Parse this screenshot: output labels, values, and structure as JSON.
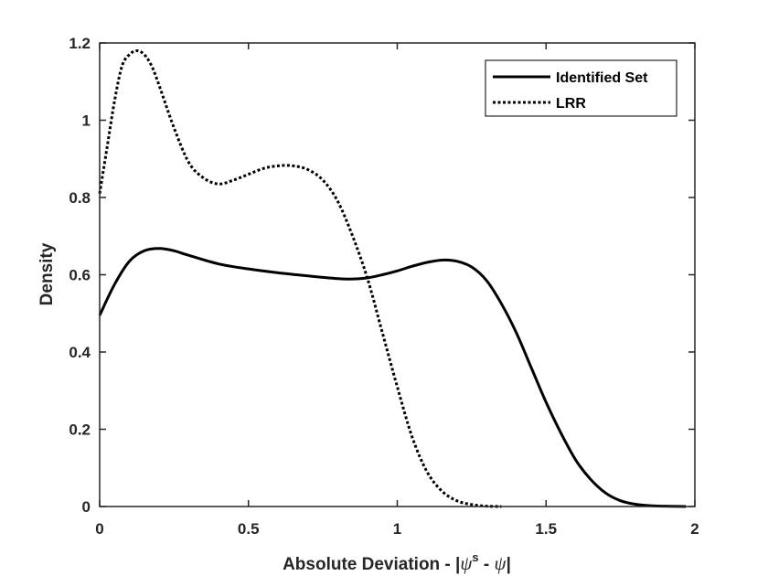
{
  "chart_data": {
    "type": "line",
    "xlabel_parts": {
      "prefix": "Absolute Deviation - |",
      "psi": "ψ",
      "sup": "s",
      "mid": " - ",
      "psi2": "ψ",
      "suffix": "|"
    },
    "ylabel": "Density",
    "xlim": [
      0,
      2
    ],
    "ylim": [
      0,
      1.2
    ],
    "xticks": [
      0,
      0.5,
      1,
      1.5,
      2
    ],
    "xtick_labels": [
      "0",
      "0.5",
      "1",
      "1.5",
      "2"
    ],
    "yticks": [
      0,
      0.2,
      0.4,
      0.6,
      0.8,
      1,
      1.2
    ],
    "ytick_labels": [
      "0",
      "0.2",
      "0.4",
      "0.6",
      "0.8",
      "1",
      "1.2"
    ],
    "grid": false,
    "legend_position": "top-right",
    "series": [
      {
        "name": "Identified Set",
        "style": "solid",
        "color": "#000000",
        "x": [
          0,
          0.05,
          0.1,
          0.15,
          0.2,
          0.25,
          0.3,
          0.4,
          0.5,
          0.6,
          0.7,
          0.8,
          0.85,
          0.9,
          0.95,
          1.0,
          1.05,
          1.1,
          1.15,
          1.2,
          1.25,
          1.3,
          1.35,
          1.4,
          1.45,
          1.5,
          1.55,
          1.6,
          1.65,
          1.7,
          1.75,
          1.8,
          1.85,
          1.9,
          1.95,
          1.97
        ],
        "y": [
          0.495,
          0.575,
          0.635,
          0.662,
          0.668,
          0.662,
          0.65,
          0.628,
          0.615,
          0.605,
          0.597,
          0.59,
          0.589,
          0.592,
          0.6,
          0.61,
          0.622,
          0.632,
          0.638,
          0.635,
          0.62,
          0.585,
          0.525,
          0.45,
          0.36,
          0.27,
          0.19,
          0.12,
          0.07,
          0.035,
          0.015,
          0.006,
          0.002,
          0.0008,
          0.0002,
          0
        ]
      },
      {
        "name": "LRR",
        "style": "dotted",
        "color": "#000000",
        "x": [
          0,
          0.025,
          0.05,
          0.075,
          0.1,
          0.125,
          0.15,
          0.175,
          0.2,
          0.25,
          0.3,
          0.35,
          0.4,
          0.45,
          0.5,
          0.55,
          0.6,
          0.65,
          0.7,
          0.75,
          0.8,
          0.85,
          0.9,
          0.95,
          1.0,
          1.05,
          1.1,
          1.15,
          1.2,
          1.25,
          1.3,
          1.35
        ],
        "y": [
          0.81,
          0.93,
          1.05,
          1.14,
          1.17,
          1.18,
          1.17,
          1.14,
          1.09,
          0.98,
          0.89,
          0.85,
          0.835,
          0.845,
          0.86,
          0.875,
          0.882,
          0.882,
          0.872,
          0.845,
          0.79,
          0.7,
          0.59,
          0.45,
          0.31,
          0.18,
          0.09,
          0.04,
          0.015,
          0.005,
          0.001,
          0
        ]
      }
    ]
  }
}
